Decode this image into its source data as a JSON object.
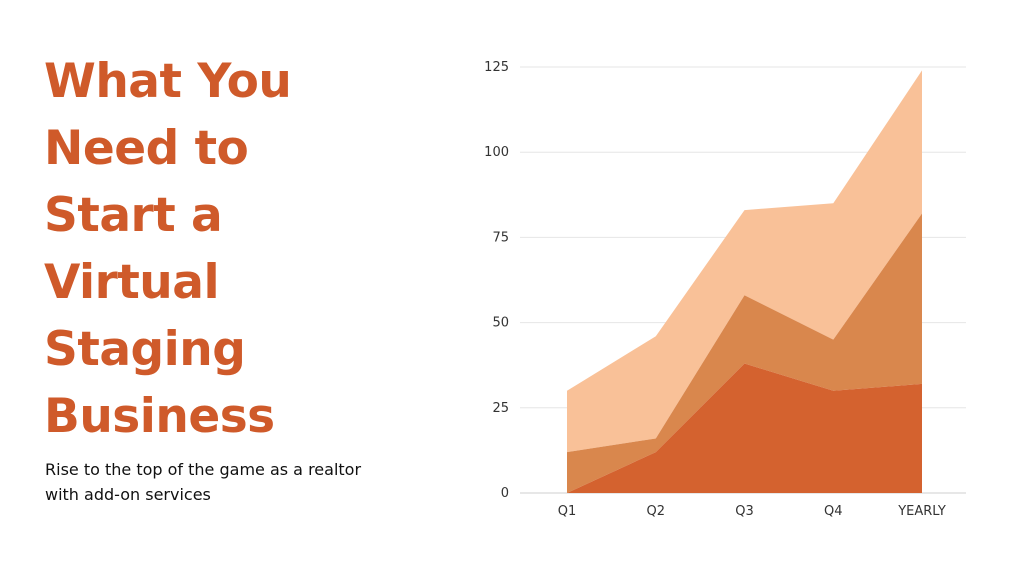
{
  "slide": {
    "title": "What You Need to Start a Virtual Staging Business",
    "subtitle": "Rise to the top of the game as a realtor with add-on services"
  },
  "chart_data": {
    "type": "area",
    "stacked": true,
    "categories": [
      "Q1",
      "Q2",
      "Q3",
      "Q4",
      "YEARLY"
    ],
    "series": [
      {
        "values": [
          0,
          12,
          38,
          30,
          32
        ],
        "color": "#d4622f"
      },
      {
        "values": [
          12,
          4,
          20,
          15,
          50
        ],
        "color": "#d9874d"
      },
      {
        "values": [
          18,
          30,
          25,
          40,
          42
        ],
        "color": "#f9c198"
      }
    ],
    "ylim": [
      0,
      125
    ],
    "yticks": [
      0,
      25,
      50,
      75,
      100,
      125
    ],
    "grid": true,
    "legend": "none",
    "title": "",
    "xlabel": "",
    "ylabel": ""
  }
}
